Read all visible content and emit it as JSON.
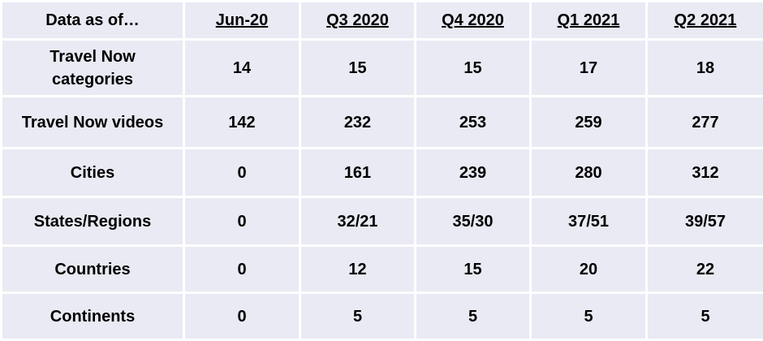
{
  "table": {
    "header": [
      "Data as of…",
      "Jun-20",
      "Q3 2020",
      "Q4 2020",
      "Q1 2021",
      "Q2 2021"
    ],
    "rows": [
      [
        "Travel Now categories",
        14,
        15,
        15,
        17,
        18
      ],
      [
        "Travel Now videos",
        142,
        232,
        253,
        259,
        277
      ],
      [
        "Cities",
        0,
        161,
        239,
        280,
        312
      ],
      [
        "States/Regions",
        0,
        "32/21",
        "35/30",
        "37/51",
        "39/57"
      ],
      [
        "Countries",
        0,
        12,
        15,
        20,
        22
      ],
      [
        "Continents",
        0,
        5,
        5,
        5,
        5
      ]
    ]
  }
}
